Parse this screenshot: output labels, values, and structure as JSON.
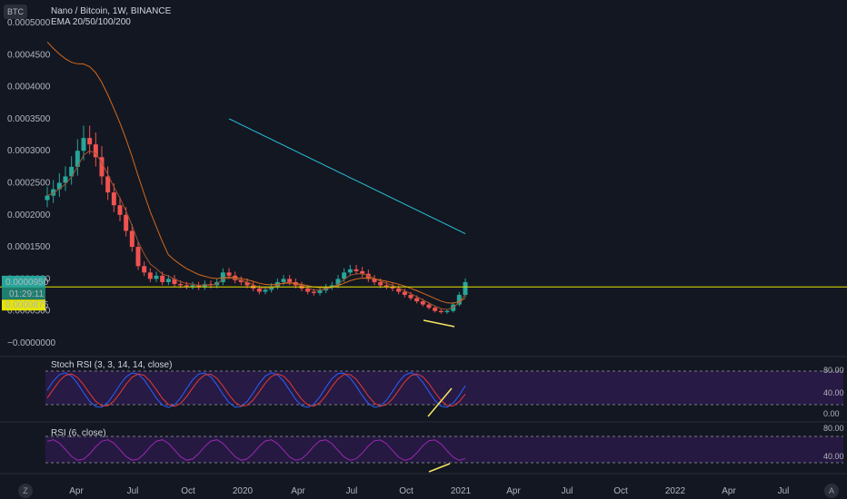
{
  "header": {
    "symbol_badge": "BTC",
    "title": "Nano / Bitcoin, 1W, BINANCE",
    "ema_label": "EMA 20/50/100/200"
  },
  "price_axis": {
    "ticks": [
      "0.0005000",
      "0.0004500",
      "0.0004000",
      "0.0003500",
      "0.0003000",
      "0.0002500",
      "0.0002000",
      "0.0001500",
      "0.0001000",
      "0.0000500",
      "−0.0000000"
    ],
    "current_price_label": "0.0000950",
    "countdown_label": "01:29:11",
    "line_price_label": "0.0000875"
  },
  "time_axis": {
    "labels": [
      "Apr",
      "Jul",
      "Oct",
      "2020",
      "Apr",
      "Jul",
      "Oct",
      "2021",
      "Apr",
      "Jul",
      "Oct",
      "2022",
      "Apr",
      "Jul"
    ]
  },
  "stoch": {
    "label": "Stoch RSI (3, 3, 14, 14, close)",
    "ticks": [
      "80.00",
      "40.00",
      "0.00"
    ]
  },
  "rsi": {
    "label": "RSI (6, close)",
    "ticks": [
      "80.00",
      "40.00"
    ]
  },
  "controls": {
    "left_btn": "Z",
    "right_btn": "A"
  },
  "colors": {
    "background": "#131722",
    "up": "#26a69a",
    "down": "#ef5350",
    "ema20": "#a0522d",
    "ema50": "#d2691e",
    "ema200": "#26c6da",
    "hline": "#e5e500",
    "band": "#2d1b4e",
    "stoch_k": "#2962ff",
    "stoch_d": "#e53935",
    "rsi_line": "#9c27b0"
  },
  "chart_data": {
    "type": "candlestick",
    "title": "Nano / Bitcoin, 1W, BINANCE",
    "ylim": [
      0,
      0.0005
    ],
    "horizontal_line": 8.75e-05,
    "current_price": 9.5e-05,
    "close_series": [
      0.00023,
      0.00024,
      0.00025,
      0.00026,
      0.000275,
      0.0003,
      0.00032,
      0.00031,
      0.00029,
      0.00026,
      0.000235,
      0.000215,
      0.0002,
      0.000175,
      0.00015,
      0.00012,
      0.00011,
      0.0001,
      0.000105,
      9.5e-05,
      0.0001,
      9.2e-05,
      9e-05,
      8.8e-05,
      9e-05,
      8.7e-05,
      9.2e-05,
      9e-05,
      9.5e-05,
      0.00011,
      0.000105,
      9.8e-05,
      9.5e-05,
      9e-05,
      8.5e-05,
      8e-05,
      8.3e-05,
      8.8e-05,
      9.5e-05,
      0.0001,
      9.5e-05,
      9e-05,
      8.5e-05,
      8e-05,
      7.8e-05,
      8.2e-05,
      8.7e-05,
      9e-05,
      0.0001,
      0.00011,
      0.000115,
      0.000112,
      0.000108,
      0.0001,
      9.5e-05,
      9e-05,
      8.8e-05,
      8.5e-05,
      8e-05,
      7.5e-05,
      7e-05,
      6.5e-05,
      6e-05,
      5.5e-05,
      5e-05,
      4.8e-05,
      5e-05,
      6e-05,
      7.5e-05,
      9.5e-05
    ],
    "ema200_series_start_index": 30
  }
}
